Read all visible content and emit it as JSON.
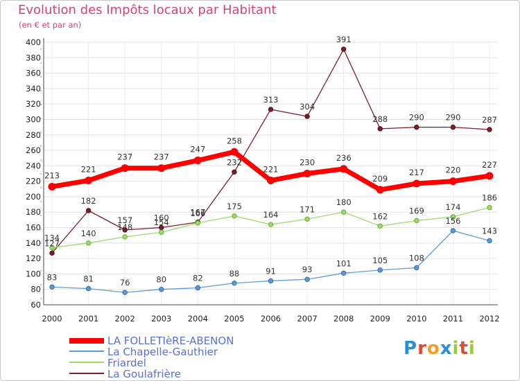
{
  "chart_data": {
    "type": "line",
    "title": "Evolution des Impôts locaux par Habitant",
    "subtitle": "(en € et par an)",
    "xlabel": "",
    "ylabel": "",
    "categories": [
      "2000",
      "2001",
      "2002",
      "2003",
      "2004",
      "2005",
      "2006",
      "2007",
      "2008",
      "2009",
      "2010",
      "2011",
      "2012"
    ],
    "ylim": [
      60,
      400
    ],
    "yticks": [
      60,
      80,
      100,
      120,
      140,
      160,
      180,
      200,
      220,
      240,
      260,
      280,
      300,
      320,
      340,
      360,
      380,
      400
    ],
    "grid": true,
    "legend_position": "bottom-left",
    "series": [
      {
        "name": "LA FOLLETIèRE-ABENON",
        "color": "#ff0000",
        "emphasis": true,
        "values": [
          213,
          221,
          237,
          237,
          247,
          258,
          221,
          230,
          236,
          209,
          217,
          220,
          227
        ]
      },
      {
        "name": "La Chapelle-Gauthier",
        "color": "#5b9bd5",
        "values": [
          83,
          81,
          76,
          80,
          82,
          88,
          91,
          93,
          101,
          105,
          108,
          156,
          143
        ]
      },
      {
        "name": "Friardel",
        "color": "#99dd66",
        "values": [
          134,
          140,
          148,
          154,
          166,
          175,
          164,
          171,
          180,
          162,
          169,
          174,
          186
        ]
      },
      {
        "name": "La Goulafrière",
        "color": "#7a1f2b",
        "values": [
          127,
          182,
          157,
          160,
          167,
          232,
          313,
          304,
          391,
          288,
          290,
          290,
          287
        ]
      }
    ]
  },
  "logo": {
    "letters": [
      "P",
      "r",
      "o",
      "x",
      "i",
      "t",
      "i"
    ],
    "colors": [
      "#2a8fd4",
      "#e04a2f",
      "#f0a020",
      "#2a8fd4",
      "#9ac93c",
      "#e04a2f",
      "#9ac93c"
    ]
  }
}
